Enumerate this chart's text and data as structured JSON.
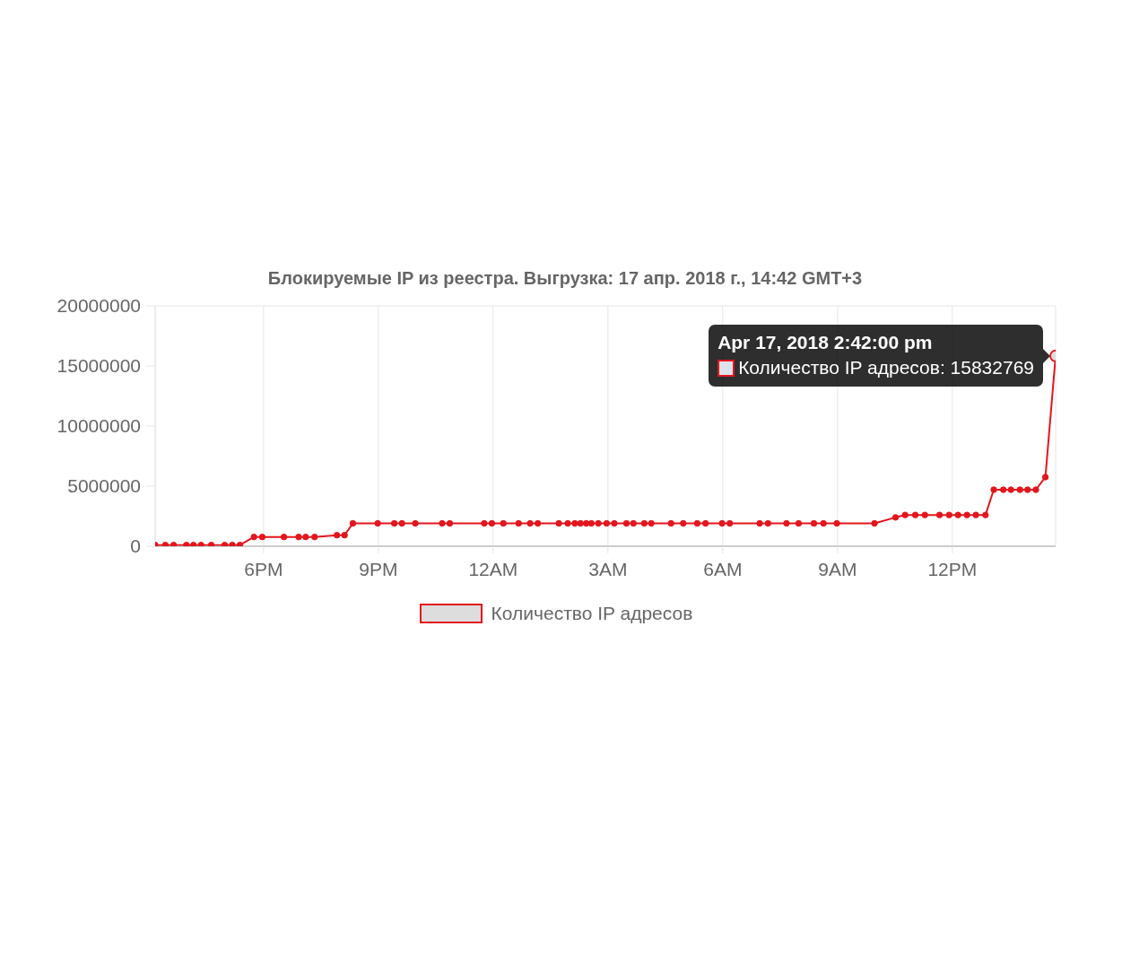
{
  "chart_data": {
    "type": "line",
    "title": "Блокируемые IP из реестра. Выгрузка: 17 апр. 2018 г., 14:42 GMT+3",
    "x": [
      "2018-04-16T15:10",
      "2018-04-16T15:26",
      "2018-04-16T15:39",
      "2018-04-16T15:59",
      "2018-04-16T16:10",
      "2018-04-16T16:22",
      "2018-04-16T16:38",
      "2018-04-16T16:59",
      "2018-04-16T17:11",
      "2018-04-16T17:23",
      "2018-04-16T17:45",
      "2018-04-16T17:58",
      "2018-04-16T18:32",
      "2018-04-16T18:55",
      "2018-04-16T19:06",
      "2018-04-16T19:20",
      "2018-04-16T19:55",
      "2018-04-16T20:07",
      "2018-04-16T20:20",
      "2018-04-16T20:59",
      "2018-04-16T21:25",
      "2018-04-16T21:37",
      "2018-04-16T21:58",
      "2018-04-16T22:40",
      "2018-04-16T22:52",
      "2018-04-16T23:46",
      "2018-04-16T23:58",
      "2018-04-17T00:16",
      "2018-04-17T00:40",
      "2018-04-17T00:58",
      "2018-04-17T01:10",
      "2018-04-17T01:43",
      "2018-04-17T01:57",
      "2018-04-17T02:08",
      "2018-04-17T02:17",
      "2018-04-17T02:26",
      "2018-04-17T02:34",
      "2018-04-17T02:45",
      "2018-04-17T02:58",
      "2018-04-17T03:10",
      "2018-04-17T03:29",
      "2018-04-17T03:40",
      "2018-04-17T03:57",
      "2018-04-17T04:08",
      "2018-04-17T04:39",
      "2018-04-17T04:58",
      "2018-04-17T05:20",
      "2018-04-17T05:33",
      "2018-04-17T05:59",
      "2018-04-17T06:11",
      "2018-04-17T06:58",
      "2018-04-17T07:11",
      "2018-04-17T07:40",
      "2018-04-17T07:59",
      "2018-04-17T08:23",
      "2018-04-17T08:38",
      "2018-04-17T08:59",
      "2018-04-17T09:58",
      "2018-04-17T10:31",
      "2018-04-17T10:46",
      "2018-04-17T11:02",
      "2018-04-17T11:17",
      "2018-04-17T11:40",
      "2018-04-17T11:55",
      "2018-04-17T12:09",
      "2018-04-17T12:23",
      "2018-04-17T12:37",
      "2018-04-17T12:52",
      "2018-04-17T13:05",
      "2018-04-17T13:20",
      "2018-04-17T13:32",
      "2018-04-17T13:46",
      "2018-04-17T13:58",
      "2018-04-17T14:11",
      "2018-04-17T14:26",
      "2018-04-17T14:42"
    ],
    "series": [
      {
        "name": "Количество IP адресов",
        "color": "#e3161d",
        "values": [
          100000,
          100000,
          100000,
          100000,
          100000,
          100000,
          100000,
          100000,
          100000,
          100000,
          770000,
          770000,
          770000,
          770000,
          770000,
          770000,
          920000,
          920000,
          1900000,
          1900000,
          1900000,
          1900000,
          1900000,
          1900000,
          1900000,
          1900000,
          1900000,
          1900000,
          1900000,
          1900000,
          1900000,
          1900000,
          1900000,
          1900000,
          1900000,
          1900000,
          1900000,
          1900000,
          1900000,
          1900000,
          1900000,
          1900000,
          1900000,
          1900000,
          1900000,
          1900000,
          1900000,
          1900000,
          1900000,
          1900000,
          1900000,
          1900000,
          1900000,
          1900000,
          1900000,
          1900000,
          1900000,
          1900000,
          2400000,
          2600000,
          2600000,
          2600000,
          2600000,
          2600000,
          2600000,
          2600000,
          2600000,
          2600000,
          4700000,
          4700000,
          4700000,
          4700000,
          4700000,
          4700000,
          5750000,
          15832769
        ]
      }
    ],
    "xlim": [
      "2018-04-16T15:10",
      "2018-04-17T14:42"
    ],
    "xticks": [
      {
        "value": "2018-04-16T18:00",
        "label": "6PM"
      },
      {
        "value": "2018-04-16T21:00",
        "label": "9PM"
      },
      {
        "value": "2018-04-17T00:00",
        "label": "12AM"
      },
      {
        "value": "2018-04-17T03:00",
        "label": "3AM"
      },
      {
        "value": "2018-04-17T06:00",
        "label": "6AM"
      },
      {
        "value": "2018-04-17T09:00",
        "label": "9AM"
      },
      {
        "value": "2018-04-17T12:00",
        "label": "12PM"
      }
    ],
    "ylim": [
      0,
      20000000
    ],
    "yticks": [
      0,
      5000000,
      10000000,
      15000000,
      20000000
    ],
    "grid": true,
    "legend": "bottom",
    "marker": "circle",
    "line_style": "solid",
    "annotations": [
      {
        "text": "Apr 17, 2018 2:42:00 pm\nКоличество IP адресов: 15832769",
        "x": "2018-04-17T14:42",
        "y": 15832769
      }
    ]
  }
}
